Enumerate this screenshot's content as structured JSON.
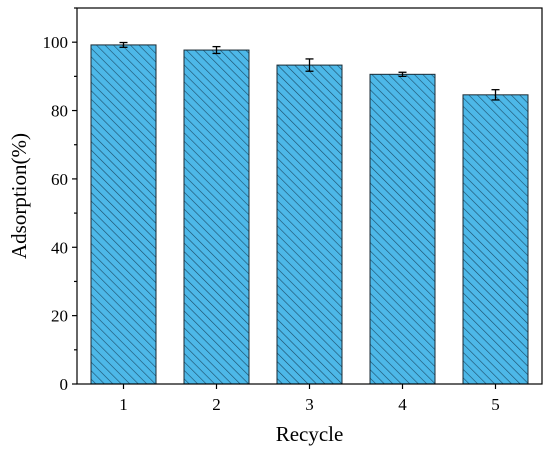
{
  "chart_data": {
    "type": "bar",
    "categories": [
      "1",
      "2",
      "3",
      "4",
      "5"
    ],
    "values": [
      99.2,
      97.7,
      93.3,
      90.6,
      84.6
    ],
    "errors": [
      0.7,
      1.0,
      1.8,
      0.6,
      1.5
    ],
    "title": "",
    "xlabel": "Recycle",
    "ylabel": "Adsorption(%)",
    "ylim": [
      0,
      110
    ],
    "yticks": [
      0,
      20,
      40,
      60,
      80,
      100
    ],
    "grid": false,
    "bar_color": "#4db8e8",
    "hatch_color": "#1a4a66",
    "bar_edge_color": "#1a2a33"
  }
}
